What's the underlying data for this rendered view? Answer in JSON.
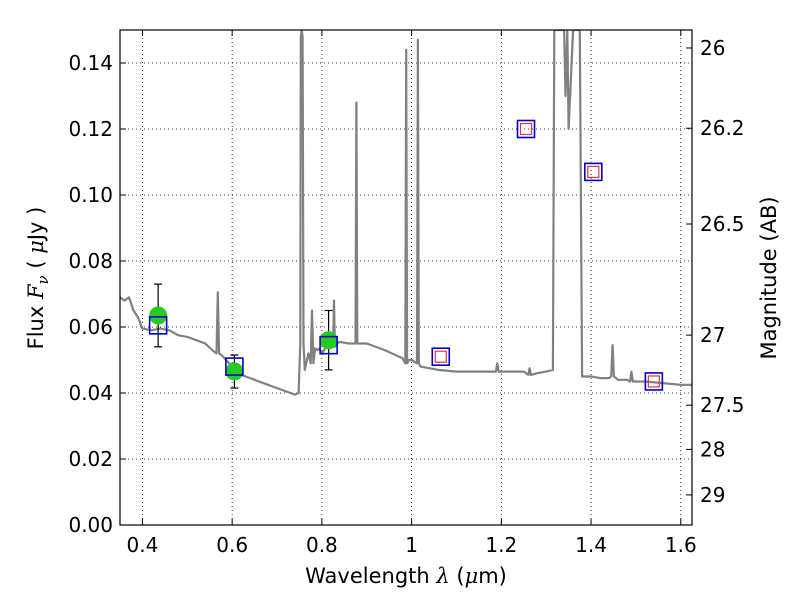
{
  "chart_data": {
    "type": "line",
    "title": "",
    "xlabel": {
      "main": "Wavelength  ",
      "lambda": "λ",
      "unit_open": " (",
      "mu": "μ",
      "unit_rest": "m)"
    },
    "ylabel": {
      "main": "Flux  ",
      "sym": "F",
      "sub": "ν",
      "unit_open": "  ( ",
      "mu": "μ",
      "unit_rest": "Jy )"
    },
    "y2label": "Magnitude (AB)",
    "xlim": [
      0.35,
      1.625
    ],
    "ylim": [
      0,
      0.15
    ],
    "grid": true,
    "x_ticks": [
      0.4,
      0.6,
      0.8,
      1.0,
      1.2,
      1.4,
      1.6
    ],
    "x_tick_labels": [
      "0.4",
      "0.6",
      "0.8",
      "1",
      "1.2",
      "1.4",
      "1.6"
    ],
    "y_ticks": [
      0,
      0.02,
      0.04,
      0.06,
      0.08,
      0.1,
      0.12,
      0.14
    ],
    "y_tick_labels": [
      "0.00",
      "0.02",
      "0.04",
      "0.06",
      "0.08",
      "0.10",
      "0.12",
      "0.14"
    ],
    "y2_ticks": [
      {
        "mag": 26,
        "label": "26"
      },
      {
        "mag": 26.2,
        "label": "26.2"
      },
      {
        "mag": 26.5,
        "label": "26.5"
      },
      {
        "mag": 27,
        "label": "27"
      },
      {
        "mag": 27.5,
        "label": "27.5"
      },
      {
        "mag": 28,
        "label": "28"
      },
      {
        "mag": 29,
        "label": "29"
      }
    ],
    "series": [
      {
        "kind": "model_spectrum",
        "color": "#808080",
        "x": [
          0.35,
          0.36,
          0.37,
          0.38,
          0.39,
          0.4,
          0.42,
          0.44,
          0.46,
          0.48,
          0.5,
          0.52,
          0.54,
          0.56,
          0.565,
          0.568,
          0.571,
          0.58,
          0.6,
          0.62,
          0.64,
          0.66,
          0.68,
          0.7,
          0.72,
          0.74,
          0.748,
          0.752,
          0.753,
          0.755,
          0.757,
          0.759,
          0.762,
          0.77,
          0.775,
          0.778,
          0.781,
          0.785,
          0.79,
          0.795,
          0.8,
          0.81,
          0.82,
          0.825,
          0.827,
          0.829,
          0.833,
          0.84,
          0.86,
          0.875,
          0.877,
          0.879,
          0.883,
          0.9,
          0.94,
          0.98,
          0.986,
          0.988,
          0.99,
          0.994,
          1.0,
          1.012,
          1.014,
          1.016,
          1.02,
          1.06,
          1.1,
          1.15,
          1.18,
          1.188,
          1.191,
          1.194,
          1.2,
          1.25,
          1.26,
          1.263,
          1.266,
          1.28,
          1.3,
          1.315,
          1.318,
          1.32,
          1.34,
          1.343,
          1.347,
          1.35,
          1.36,
          1.37,
          1.375,
          1.38,
          1.39,
          1.4,
          1.42,
          1.44,
          1.445,
          1.448,
          1.451,
          1.46,
          1.48,
          1.487,
          1.49,
          1.493,
          1.52,
          1.56,
          1.6,
          1.625
        ],
        "y": [
          0.069,
          0.068,
          0.069,
          0.065,
          0.063,
          0.0595,
          0.059,
          0.0595,
          0.059,
          0.0575,
          0.057,
          0.056,
          0.055,
          0.0525,
          0.052,
          0.0705,
          0.052,
          0.051,
          0.048,
          0.0455,
          0.0445,
          0.0435,
          0.0425,
          0.0415,
          0.0405,
          0.0395,
          0.04,
          0.055,
          0.148,
          0.15,
          0.148,
          0.055,
          0.047,
          0.052,
          0.049,
          0.065,
          0.049,
          0.0535,
          0.053,
          0.0535,
          0.052,
          0.054,
          0.055,
          0.054,
          0.068,
          0.054,
          0.055,
          0.0555,
          0.055,
          0.055,
          0.128,
          0.055,
          0.055,
          0.055,
          0.053,
          0.0505,
          0.049,
          0.144,
          0.049,
          0.05,
          0.05,
          0.049,
          0.147,
          0.049,
          0.048,
          0.047,
          0.0465,
          0.0465,
          0.0465,
          0.0465,
          0.049,
          0.0465,
          0.0465,
          0.0465,
          0.0455,
          0.0475,
          0.0455,
          0.046,
          0.0465,
          0.047,
          0.15,
          0.15,
          0.15,
          0.13,
          0.15,
          0.12,
          0.15,
          0.15,
          0.15,
          0.045,
          0.045,
          0.045,
          0.0445,
          0.0445,
          0.045,
          0.0545,
          0.045,
          0.044,
          0.044,
          0.0435,
          0.0465,
          0.0435,
          0.0435,
          0.043,
          0.0425,
          0.0425
        ]
      },
      {
        "kind": "photometry_points",
        "face_color": "#22cc22",
        "error_color": "#000000",
        "points": [
          {
            "x": 0.435,
            "y": 0.0635,
            "yerr_low": 0.0095,
            "yerr_high": 0.0095
          },
          {
            "x": 0.605,
            "y": 0.0465,
            "yerr_low": 0.005,
            "yerr_high": 0.005
          },
          {
            "x": 0.815,
            "y": 0.056,
            "yerr_low": 0.009,
            "yerr_high": 0.009
          }
        ]
      },
      {
        "kind": "model_band_flux",
        "edge_color": "#0000cc",
        "points": [
          {
            "x": 0.435,
            "y": 0.0605
          },
          {
            "x": 0.605,
            "y": 0.048
          },
          {
            "x": 0.815,
            "y": 0.0545
          },
          {
            "x": 1.065,
            "y": 0.051
          },
          {
            "x": 1.255,
            "y": 0.12
          },
          {
            "x": 1.405,
            "y": 0.107
          },
          {
            "x": 1.54,
            "y": 0.0435
          }
        ]
      },
      {
        "kind": "model_band_flux_inner",
        "edge_color": "#dd3344",
        "points": [
          {
            "x": 1.065,
            "y": 0.051
          },
          {
            "x": 1.255,
            "y": 0.12
          },
          {
            "x": 1.405,
            "y": 0.107
          },
          {
            "x": 1.54,
            "y": 0.0435
          }
        ]
      }
    ]
  }
}
